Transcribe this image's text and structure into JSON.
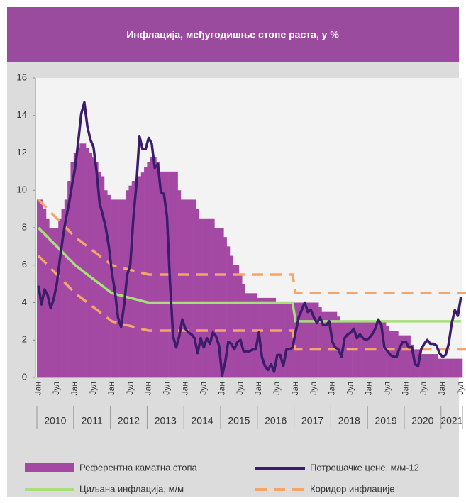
{
  "chart_data": {
    "type": "bar-line",
    "title": "Инфлација, међугодишње стопе раста, у %",
    "categories": [
      "Јан",
      null,
      null,
      null,
      null,
      null,
      "Јул",
      null,
      null,
      null,
      null,
      null,
      "Јан",
      null,
      null,
      null,
      null,
      null,
      "Јул",
      null,
      null,
      null,
      null,
      null,
      "Јан",
      null,
      null,
      null,
      null,
      null,
      "Јул",
      null,
      null,
      null,
      null,
      null,
      "Јан",
      null,
      null,
      null,
      null,
      null,
      "Јул",
      null,
      null,
      null,
      null,
      null,
      "Јан",
      null,
      null,
      null,
      null,
      null,
      "Јул",
      null,
      null,
      null,
      null,
      null,
      "Јан",
      null,
      null,
      null,
      null,
      null,
      "Јул",
      null,
      null,
      null,
      null,
      null,
      "Јан",
      null,
      null,
      null,
      null,
      null,
      "Јул",
      null,
      null,
      null,
      null,
      null,
      "Јан",
      null,
      null,
      null,
      null,
      null,
      "Јул",
      null,
      null,
      null,
      null,
      null,
      "Јан",
      null,
      null,
      null,
      null,
      null,
      "Јул",
      null,
      null,
      null,
      null,
      null,
      "Јан",
      null,
      null,
      null,
      null,
      null,
      "Јул",
      null,
      null,
      null,
      null,
      null,
      "Јан",
      null,
      null,
      null,
      null,
      null,
      "Јул",
      null,
      null,
      null,
      null,
      null,
      "Јан",
      null,
      null,
      null,
      null,
      null,
      "Јул"
    ],
    "year_labels": [
      "2010",
      "2011",
      "2012",
      "2013",
      "2014",
      "2015",
      "2016",
      "2017",
      "2018",
      "2019",
      "2020",
      "2021"
    ],
    "ylim": [
      0,
      16
    ],
    "yticks": [
      0,
      2,
      4,
      6,
      8,
      10,
      12,
      14,
      16
    ],
    "bars": {
      "name": "Референтна каматна стопа",
      "color": "#a349a4",
      "values": [
        9.5,
        9.5,
        9,
        8.5,
        8,
        8,
        8,
        8.5,
        9,
        9.5,
        10.5,
        11.5,
        12,
        12.25,
        12.5,
        12.5,
        12.25,
        12,
        11.75,
        11.5,
        11,
        10.75,
        10,
        9.75,
        9.5,
        9.5,
        9.5,
        9.5,
        9.5,
        10,
        10.25,
        10.5,
        10.5,
        10.75,
        10.95,
        11.25,
        11.5,
        11.75,
        11.75,
        11.5,
        11,
        11,
        11,
        11,
        11,
        11,
        10,
        9.5,
        9.5,
        9.5,
        9.5,
        9.5,
        9,
        8.5,
        8.5,
        8.5,
        8.5,
        8.5,
        8,
        8,
        8,
        7.5,
        7,
        6.5,
        6,
        6,
        5.5,
        5,
        4.5,
        4.5,
        4.5,
        4.5,
        4.25,
        4.25,
        4.25,
        4.25,
        4.25,
        4.25,
        4,
        4,
        4,
        4,
        4,
        4,
        4,
        4,
        4,
        4,
        4,
        4,
        4,
        4,
        3.75,
        3.5,
        3.5,
        3.5,
        3.5,
        3.5,
        3.25,
        3,
        3,
        3,
        3,
        3,
        3,
        3,
        3,
        3,
        3,
        3,
        3,
        3,
        3,
        3,
        2.75,
        2.5,
        2.5,
        2.5,
        2.25,
        2.25,
        2.25,
        2.25,
        1.75,
        1.5,
        1.5,
        1.25,
        1.25,
        1.25,
        1.25,
        1.25,
        1.25,
        1,
        1,
        1,
        1,
        1,
        1,
        1,
        1
      ]
    },
    "cpi": {
      "name": "Потрошачке цене, м/м-12",
      "color": "#3b1d6b",
      "values": [
        4.9,
        3.9,
        4.7,
        4.4,
        3.7,
        4.2,
        5.0,
        6.3,
        7.5,
        8.5,
        9.3,
        10.3,
        11.2,
        12.6,
        14.1,
        14.7,
        13.4,
        12.7,
        12.3,
        11.0,
        9.3,
        8.7,
        8.0,
        7.0,
        5.6,
        4.6,
        3.2,
        2.7,
        3.9,
        5.5,
        6.0,
        8.5,
        10.3,
        12.9,
        12.2,
        12.2,
        12.8,
        12.5,
        11.2,
        11.4,
        9.9,
        9.8,
        8.6,
        5.0,
        2.2,
        1.6,
        2.2,
        3.1,
        2.6,
        2.4,
        2.3,
        2.1,
        1.3,
        2.1,
        1.6,
        2.1,
        1.8,
        2.4,
        2.2,
        1.7,
        0.1,
        0.8,
        1.9,
        1.8,
        1.5,
        1.9,
        2.0,
        1.4,
        1.4,
        1.4,
        1.5,
        1.5,
        2.4,
        1.1,
        0.6,
        0.4,
        0.7,
        0.3,
        1.2,
        1.2,
        0.6,
        1.5,
        1.5,
        1.6,
        2.4,
        3.2,
        3.6,
        4.0,
        3.5,
        3.6,
        3.2,
        2.9,
        3.2,
        2.8,
        2.8,
        3.0,
        1.9,
        1.6,
        1.5,
        1.1,
        2.1,
        2.3,
        2.4,
        2.6,
        2.1,
        2.3,
        2.1,
        2.0,
        2.1,
        2.3,
        2.6,
        3.1,
        2.8,
        1.6,
        1.4,
        1.2,
        1.1,
        1.1,
        1.6,
        1.9,
        1.9,
        1.6,
        1.6,
        0.7,
        0.6,
        1.5,
        1.8,
        2.0,
        1.8,
        1.8,
        1.7,
        1.3,
        1.1,
        1.2,
        1.8,
        2.9,
        3.6,
        3.3,
        4.3
      ]
    },
    "target": {
      "name": "Циљана инфлација, м/м",
      "color": "#a6e07a",
      "values": [
        8,
        7.83,
        7.67,
        7.5,
        7.33,
        7.17,
        7,
        6.83,
        6.67,
        6.5,
        6.33,
        6.17,
        6,
        5.875,
        5.75,
        5.625,
        5.5,
        5.375,
        5.25,
        5.125,
        5,
        4.875,
        4.75,
        4.625,
        4.5,
        4.46,
        4.42,
        4.38,
        4.33,
        4.29,
        4.25,
        4.21,
        4.17,
        4.13,
        4.08,
        4.04,
        4,
        4,
        4,
        4,
        4,
        4,
        4,
        4,
        4,
        4,
        4,
        4,
        4,
        4,
        4,
        4,
        4,
        4,
        4,
        4,
        4,
        4,
        4,
        4,
        4,
        4,
        4,
        4,
        4,
        4,
        4,
        4,
        4,
        4,
        4,
        4,
        4,
        4,
        4,
        4,
        4,
        4,
        4,
        4,
        4,
        4,
        4,
        4,
        3,
        3,
        3,
        3,
        3,
        3,
        3,
        3,
        3,
        3,
        3,
        3,
        3,
        3,
        3,
        3,
        3,
        3,
        3,
        3,
        3,
        3,
        3,
        3,
        3,
        3,
        3,
        3,
        3,
        3,
        3,
        3,
        3,
        3,
        3,
        3,
        3,
        3,
        3,
        3,
        3,
        3,
        3,
        3,
        3,
        3,
        3,
        3,
        3,
        3,
        3,
        3,
        3,
        3,
        3
      ]
    },
    "corridor": {
      "name": "Коридор инфлације",
      "color": "#f4a56a",
      "upper": [
        9.5,
        9.33,
        9.17,
        9,
        8.83,
        8.67,
        8.5,
        8.33,
        8.17,
        8,
        7.83,
        7.67,
        7.5,
        7.375,
        7.25,
        7.125,
        7,
        6.875,
        6.75,
        6.625,
        6.5,
        6.375,
        6.25,
        6.125,
        6,
        5.96,
        5.92,
        5.88,
        5.83,
        5.79,
        5.75,
        5.71,
        5.67,
        5.63,
        5.58,
        5.54,
        5.5,
        5.5,
        5.5,
        5.5,
        5.5,
        5.5,
        5.5,
        5.5,
        5.5,
        5.5,
        5.5,
        5.5,
        5.5,
        5.5,
        5.5,
        5.5,
        5.5,
        5.5,
        5.5,
        5.5,
        5.5,
        5.5,
        5.5,
        5.5,
        5.5,
        5.5,
        5.5,
        5.5,
        5.5,
        5.5,
        5.5,
        5.5,
        5.5,
        5.5,
        5.5,
        5.5,
        5.5,
        5.5,
        5.5,
        5.5,
        5.5,
        5.5,
        5.5,
        5.5,
        5.5,
        5.5,
        5.5,
        5.5,
        4.5,
        4.5,
        4.5,
        4.5,
        4.5,
        4.5,
        4.5,
        4.5,
        4.5,
        4.5,
        4.5,
        4.5,
        4.5,
        4.5,
        4.5,
        4.5,
        4.5,
        4.5,
        4.5,
        4.5,
        4.5,
        4.5,
        4.5,
        4.5,
        4.5,
        4.5,
        4.5,
        4.5,
        4.5,
        4.5,
        4.5,
        4.5,
        4.5,
        4.5,
        4.5,
        4.5,
        4.5,
        4.5,
        4.5,
        4.5,
        4.5,
        4.5,
        4.5,
        4.5,
        4.5,
        4.5,
        4.5,
        4.5,
        4.5,
        4.5,
        4.5,
        4.5,
        4.5,
        4.5,
        4.5,
        4.5,
        4.5
      ],
      "lower": [
        6.5,
        6.33,
        6.17,
        6,
        5.83,
        5.67,
        5.5,
        5.33,
        5.17,
        5,
        4.83,
        4.67,
        4.5,
        4.375,
        4.25,
        4.125,
        4,
        3.875,
        3.75,
        3.625,
        3.5,
        3.375,
        3.25,
        3.125,
        3,
        2.96,
        2.92,
        2.88,
        2.83,
        2.79,
        2.75,
        2.71,
        2.67,
        2.63,
        2.58,
        2.54,
        2.5,
        2.5,
        2.5,
        2.5,
        2.5,
        2.5,
        2.5,
        2.5,
        2.5,
        2.5,
        2.5,
        2.5,
        2.5,
        2.5,
        2.5,
        2.5,
        2.5,
        2.5,
        2.5,
        2.5,
        2.5,
        2.5,
        2.5,
        2.5,
        2.5,
        2.5,
        2.5,
        2.5,
        2.5,
        2.5,
        2.5,
        2.5,
        2.5,
        2.5,
        2.5,
        2.5,
        2.5,
        2.5,
        2.5,
        2.5,
        2.5,
        2.5,
        2.5,
        2.5,
        2.5,
        2.5,
        2.5,
        2.5,
        1.5,
        1.5,
        1.5,
        1.5,
        1.5,
        1.5,
        1.5,
        1.5,
        1.5,
        1.5,
        1.5,
        1.5,
        1.5,
        1.5,
        1.5,
        1.5,
        1.5,
        1.5,
        1.5,
        1.5,
        1.5,
        1.5,
        1.5,
        1.5,
        1.5,
        1.5,
        1.5,
        1.5,
        1.5,
        1.5,
        1.5,
        1.5,
        1.5,
        1.5,
        1.5,
        1.5,
        1.5,
        1.5,
        1.5,
        1.5,
        1.5,
        1.5,
        1.5,
        1.5,
        1.5,
        1.5,
        1.5,
        1.5,
        1.5,
        1.5,
        1.5,
        1.5,
        1.5,
        1.5,
        1.5,
        1.5,
        1.5
      ]
    }
  }
}
